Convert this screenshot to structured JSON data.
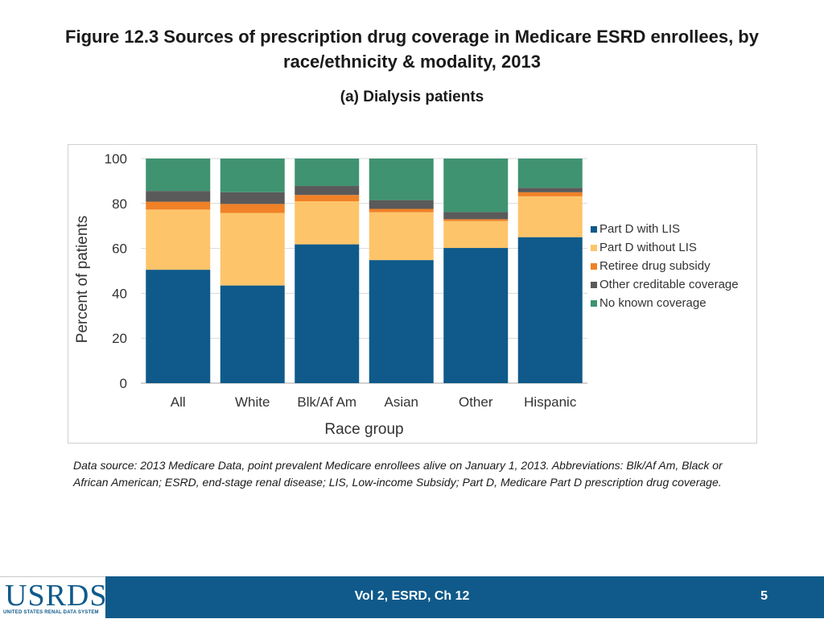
{
  "title": "Figure 12.3 Sources of prescription drug coverage in Medicare ESRD enrollees, by race/ethnicity & modality, 2013",
  "subtitle": "(a) Dialysis patients",
  "note": "Data source: 2013 Medicare Data, point prevalent Medicare enrollees alive on January 1, 2013. Abbreviations: Blk/Af Am, Black or African American; ESRD, end-stage renal disease; LIS, Low-income Subsidy; Part D, Medicare Part D prescription drug coverage.",
  "footer": {
    "logo_text": "USRDS",
    "logo_subtext": "UNITED STATES RENAL DATA SYSTEM",
    "center": "Vol 2, ESRD, Ch 12",
    "page": "5"
  },
  "chart_data": {
    "type": "bar",
    "stacked": true,
    "categories": [
      "All",
      "White",
      "Blk/Af Am",
      "Asian",
      "Other",
      "Hispanic"
    ],
    "xlabel": "Race group",
    "ylabel": "Percent of patients",
    "ylim": [
      0,
      100
    ],
    "yticks": [
      0,
      20,
      40,
      60,
      80,
      100
    ],
    "grid": true,
    "legend_position": "right",
    "series": [
      {
        "name": "Part D with LIS",
        "color": "#0f5a8a",
        "values": [
          50.5,
          43.5,
          61.8,
          54.8,
          60.2,
          65.0
        ]
      },
      {
        "name": "Part D without LIS",
        "color": "#fdc46a",
        "values": [
          26.8,
          32.3,
          19.2,
          21.3,
          12.0,
          18.2
        ]
      },
      {
        "name": "Retiree drug subsidy",
        "color": "#f08127",
        "values": [
          3.5,
          4.0,
          2.8,
          1.5,
          0.8,
          1.8
        ]
      },
      {
        "name": "Other creditable coverage",
        "color": "#5a5a5a",
        "values": [
          4.8,
          5.2,
          4.0,
          3.9,
          3.2,
          2.0
        ]
      },
      {
        "name": "No known coverage",
        "color": "#3f9370",
        "values": [
          14.4,
          15.0,
          12.2,
          18.5,
          23.8,
          13.0
        ]
      }
    ]
  }
}
